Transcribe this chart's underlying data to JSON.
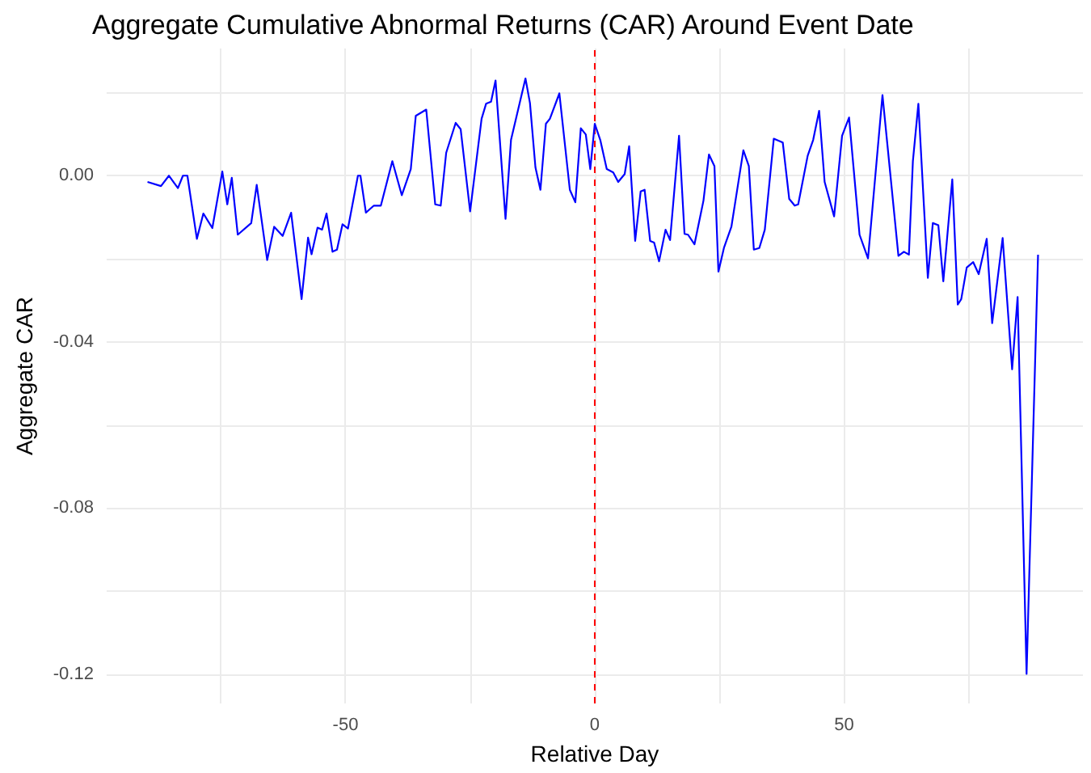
{
  "chart_data": {
    "type": "line",
    "title": "Aggregate Cumulative Abnormal Returns (CAR) Around Event Date",
    "xlabel": "Relative Day",
    "ylabel": "Aggregate CAR",
    "xlim": [
      -97.9,
      97.9
    ],
    "ylim": [
      -0.127,
      0.0306
    ],
    "xticks": [
      {
        "value": -75,
        "label": null
      },
      {
        "value": -50,
        "label": "-50"
      },
      {
        "value": -25,
        "label": null
      },
      {
        "value": 0,
        "label": "0"
      },
      {
        "value": 25,
        "label": null
      },
      {
        "value": 50,
        "label": "50"
      },
      {
        "value": 75,
        "label": null
      }
    ],
    "yticks": [
      {
        "value": -0.12,
        "label": "-0.12"
      },
      {
        "value": -0.1,
        "label": null
      },
      {
        "value": -0.08,
        "label": "-0.08"
      },
      {
        "value": -0.06,
        "label": null
      },
      {
        "value": -0.04,
        "label": "-0.04"
      },
      {
        "value": -0.02,
        "label": null
      },
      {
        "value": 0,
        "label": "0.00"
      },
      {
        "value": 0.02,
        "label": null
      }
    ],
    "grid": true,
    "marker": "none",
    "line_style": "solid",
    "ref_lines": [
      {
        "axis": "x",
        "value": 0,
        "color": "#ff0000",
        "line_style": "dashed"
      }
    ],
    "series": [
      {
        "color": "#0000ff",
        "x": [
          -89.7,
          -87,
          -85.4,
          -83.6,
          -82.6,
          -81.7,
          -79.8,
          -78.5,
          -76.7,
          -74.7,
          -73.7,
          -72.8,
          -71.6,
          -68.9,
          -67.8,
          -65.7,
          -64.3,
          -62.6,
          -60.9,
          -58.8,
          -57.5,
          -56.8,
          -55.6,
          -54.7,
          -53.8,
          -52.6,
          -51.7,
          -50.6,
          -49.5,
          -47.5,
          -47,
          -45.9,
          -44.3,
          -42.9,
          -40.6,
          -38.7,
          -36.9,
          -35.9,
          -33.8,
          -32,
          -30.9,
          -29.8,
          -27.9,
          -26.9,
          -25,
          -22.7,
          -21.8,
          -20.8,
          -19.9,
          -17.9,
          -16.8,
          -13.9,
          -13,
          -11.9,
          -10.9,
          -9.8,
          -9,
          -7.1,
          -5,
          -3.9,
          -2.8,
          -1.8,
          -0.9,
          0,
          1.1,
          2.4,
          3.7,
          4.7,
          6,
          6.9,
          8.1,
          9.2,
          10,
          11.1,
          11.9,
          12.9,
          14.2,
          15.1,
          16.9,
          18,
          18.7,
          20,
          21.8,
          22.9,
          24,
          24.8,
          25.9,
          27.4,
          29.8,
          30.9,
          31.9,
          33,
          34.1,
          35.9,
          37.7,
          39,
          40.1,
          40.8,
          42.7,
          43.8,
          45,
          46.1,
          48,
          49.6,
          51,
          53.1,
          54.8,
          57.7,
          60.9,
          62,
          63,
          63.8,
          64.9,
          66.8,
          67.8,
          68.9,
          69.9,
          71.7,
          72.8,
          73.5,
          74.6,
          75.9,
          77,
          78.6,
          79.7,
          81.8,
          83.7,
          84.8,
          86.6,
          88.9
        ],
        "values": [
          -0.0015,
          -0.0025,
          0,
          -0.003,
          0,
          0,
          -0.0152,
          -0.0091,
          -0.0126,
          0.001,
          -0.0069,
          -0.0005,
          -0.0142,
          -0.0114,
          -0.0022,
          -0.0203,
          -0.0123,
          -0.0145,
          -0.0089,
          -0.0297,
          -0.0149,
          -0.0189,
          -0.0125,
          -0.013,
          -0.0091,
          -0.0183,
          -0.0178,
          -0.0117,
          -0.0127,
          0,
          0,
          -0.0089,
          -0.0072,
          -0.0072,
          0.0035,
          -0.0047,
          0.0016,
          0.0144,
          0.0159,
          -0.0069,
          -0.0072,
          0.0055,
          0.0127,
          0.0112,
          -0.0086,
          0.0137,
          0.0173,
          0.0178,
          0.0229,
          -0.0104,
          0.0086,
          0.0234,
          0.0175,
          0.002,
          -0.0034,
          0.0125,
          0.0137,
          0.0198,
          -0.0034,
          -0.0064,
          0.0114,
          0.0099,
          0.0016,
          0.0125,
          0.0086,
          0.0016,
          0.0008,
          -0.0015,
          0.0004,
          0.0071,
          -0.0157,
          -0.0038,
          -0.0034,
          -0.0157,
          -0.0161,
          -0.0206,
          -0.013,
          -0.0155,
          0.0096,
          -0.014,
          -0.0142,
          -0.0165,
          -0.006,
          0.0051,
          0.0023,
          -0.0231,
          -0.0174,
          -0.0123,
          0.0061,
          0.0023,
          -0.0178,
          -0.0174,
          -0.013,
          0.0089,
          0.008,
          -0.0056,
          -0.0072,
          -0.0069,
          0.0048,
          0.0086,
          0.0156,
          -0.0015,
          -0.0098,
          0.0096,
          0.014,
          -0.0142,
          -0.0199,
          0.0194,
          -0.0193,
          -0.0183,
          -0.019,
          0.0035,
          0.0173,
          -0.0246,
          -0.0114,
          -0.0119,
          -0.0254,
          -0.0009,
          -0.031,
          -0.0297,
          -0.0221,
          -0.0208,
          -0.0237,
          -0.0152,
          -0.0355,
          -0.015,
          -0.0466,
          -0.0292,
          -0.1199,
          -0.019
        ]
      }
    ]
  }
}
